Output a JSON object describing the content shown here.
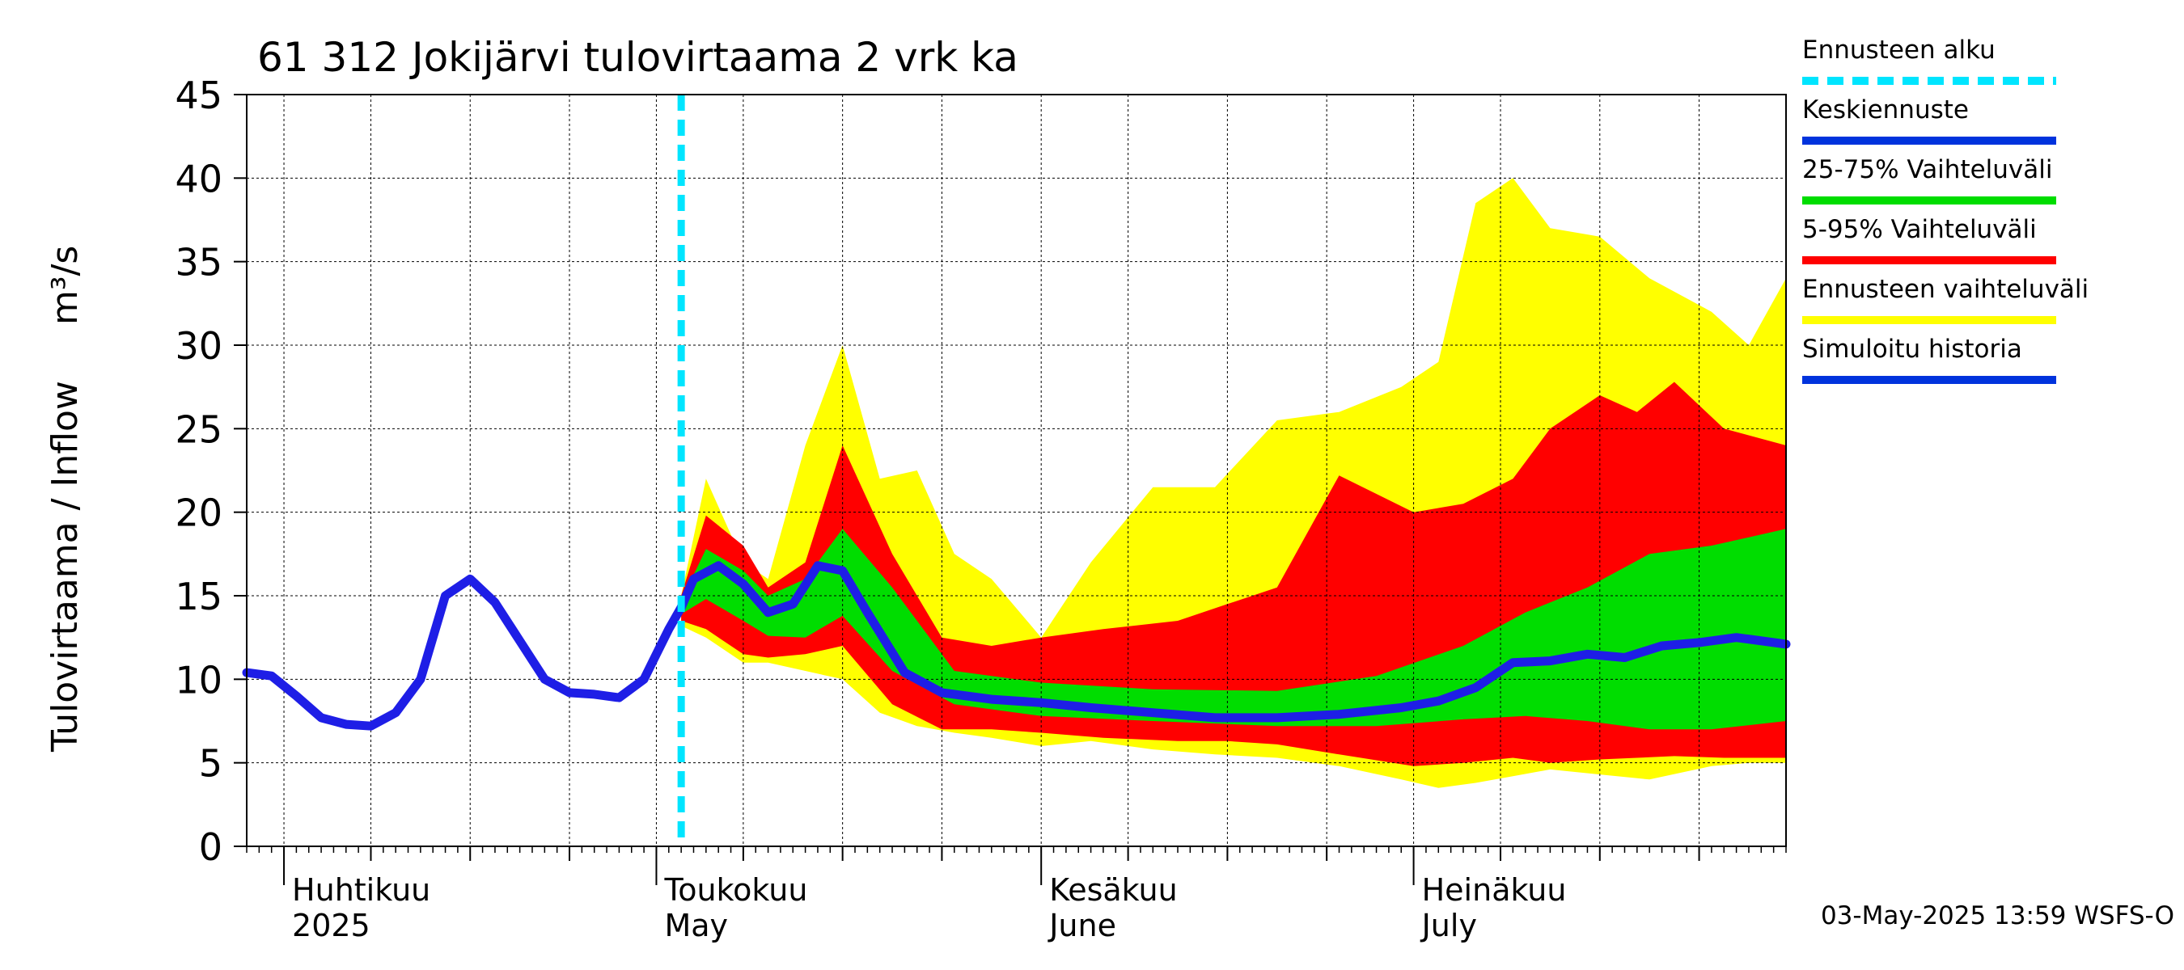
{
  "chart_data": {
    "type": "area",
    "title": "61 312 Jokijärvi tulovirtaama 2 vrk ka",
    "ylabel": "Tulovirtaama / Inflow",
    "yunit": "m³/s",
    "ylim": [
      0,
      45
    ],
    "yticks": [
      "0",
      "5",
      "10",
      "15",
      "20",
      "25",
      "30",
      "35",
      "40",
      "45"
    ],
    "xlim": [
      "2025-03-29",
      "2025-07-31"
    ],
    "month_labels": [
      {
        "fi": "Huhtikuu",
        "en": "2025",
        "date": "2025-04-01"
      },
      {
        "fi": "Toukokuu",
        "en": "May",
        "date": "2025-05-01"
      },
      {
        "fi": "Kesäkuu",
        "en": "June",
        "date": "2025-06-01"
      },
      {
        "fi": "Heinäkuu",
        "en": "July",
        "date": "2025-07-01"
      }
    ],
    "forecast_start": "2025-05-03",
    "grid": true,
    "legend_position": "right",
    "legend": [
      {
        "label": "Ennusteen alku",
        "color": "#00e5ff",
        "style": "dashed"
      },
      {
        "label": "Keskiennuste",
        "color": "#0033dd",
        "style": "solid"
      },
      {
        "label": "25-75% Vaihteluväli",
        "color": "#00dd00",
        "style": "solid"
      },
      {
        "label": "5-95% Vaihteluväli",
        "color": "#ff0000",
        "style": "solid"
      },
      {
        "label": "Ennusteen vaihteluväli",
        "color": "#ffff00",
        "style": "solid"
      },
      {
        "label": "Simuloitu historia",
        "color": "#0033dd",
        "style": "solid"
      }
    ],
    "footer": "03-May-2025 13:59 WSFS-O",
    "series": [
      {
        "name": "Simuloitu historia",
        "color": "#1e1ee6",
        "x": [
          "2025-03-29",
          "2025-03-31",
          "2025-04-02",
          "2025-04-04",
          "2025-04-06",
          "2025-04-08",
          "2025-04-10",
          "2025-04-12",
          "2025-04-14",
          "2025-04-16",
          "2025-04-18",
          "2025-04-20",
          "2025-04-22",
          "2025-04-24",
          "2025-04-26",
          "2025-04-28",
          "2025-04-30",
          "2025-05-01",
          "2025-05-02",
          "2025-05-03"
        ],
        "y": [
          10.4,
          10.2,
          9.0,
          7.7,
          7.3,
          7.2,
          8.0,
          10.0,
          15.0,
          16.0,
          14.6,
          12.3,
          10.0,
          9.2,
          9.1,
          8.9,
          10.0,
          11.5,
          13.0,
          14.3
        ]
      },
      {
        "name": "Keskiennuste",
        "color": "#1e1ee6",
        "x": [
          "2025-05-03",
          "2025-05-04",
          "2025-05-06",
          "2025-05-08",
          "2025-05-10",
          "2025-05-12",
          "2025-05-14",
          "2025-05-16",
          "2025-05-18",
          "2025-05-21",
          "2025-05-24",
          "2025-05-28",
          "2025-06-01",
          "2025-06-05",
          "2025-06-10",
          "2025-06-15",
          "2025-06-20",
          "2025-06-25",
          "2025-06-30",
          "2025-07-03",
          "2025-07-06",
          "2025-07-09",
          "2025-07-12",
          "2025-07-15",
          "2025-07-18",
          "2025-07-21",
          "2025-07-24",
          "2025-07-27",
          "2025-07-31"
        ],
        "y": [
          14.3,
          16.0,
          16.8,
          15.7,
          14.0,
          14.5,
          16.8,
          16.5,
          14.0,
          10.4,
          9.2,
          8.8,
          8.6,
          8.3,
          8.0,
          7.7,
          7.7,
          7.9,
          8.3,
          8.7,
          9.5,
          11.0,
          11.1,
          11.5,
          11.3,
          12.0,
          12.2,
          12.5,
          12.1
        ]
      },
      {
        "name": "25-75% Vaihteluväli",
        "color": "#00dd00",
        "x": [
          "2025-05-03",
          "2025-05-05",
          "2025-05-08",
          "2025-05-10",
          "2025-05-13",
          "2025-05-16",
          "2025-05-20",
          "2025-05-25",
          "2025-06-01",
          "2025-06-10",
          "2025-06-20",
          "2025-06-28",
          "2025-07-05",
          "2025-07-10",
          "2025-07-15",
          "2025-07-20",
          "2025-07-25",
          "2025-07-31"
        ],
        "low": [
          13.9,
          14.8,
          13.5,
          12.6,
          12.5,
          13.8,
          10.5,
          8.5,
          7.8,
          7.5,
          7.2,
          7.2,
          7.6,
          7.8,
          7.5,
          7.0,
          7.0,
          7.5
        ],
        "high": [
          14.7,
          17.8,
          16.5,
          15.0,
          16.0,
          19.0,
          15.5,
          10.5,
          9.8,
          9.4,
          9.3,
          10.2,
          12.0,
          14.0,
          15.5,
          17.5,
          18.0,
          19.0
        ]
      },
      {
        "name": "5-95% Vaihteluväli",
        "color": "#ff0000",
        "x": [
          "2025-05-03",
          "2025-05-05",
          "2025-05-08",
          "2025-05-10",
          "2025-05-13",
          "2025-05-16",
          "2025-05-20",
          "2025-05-24",
          "2025-05-28",
          "2025-06-01",
          "2025-06-06",
          "2025-06-12",
          "2025-06-16",
          "2025-06-20",
          "2025-06-25",
          "2025-07-01",
          "2025-07-05",
          "2025-07-09",
          "2025-07-12",
          "2025-07-16",
          "2025-07-19",
          "2025-07-22",
          "2025-07-26",
          "2025-07-31"
        ],
        "low": [
          13.5,
          13.0,
          11.5,
          11.3,
          11.5,
          12.0,
          8.5,
          7.0,
          7.0,
          6.8,
          6.5,
          6.3,
          6.3,
          6.1,
          5.5,
          4.8,
          5.0,
          5.3,
          5.0,
          5.2,
          5.3,
          5.4,
          5.3,
          5.3
        ],
        "high": [
          15.0,
          19.8,
          18.0,
          15.5,
          17.0,
          24.0,
          17.5,
          12.5,
          12.0,
          12.5,
          13.0,
          13.5,
          14.5,
          15.5,
          22.2,
          20.0,
          20.5,
          22.0,
          25.0,
          27.0,
          26.0,
          27.8,
          25.0,
          24.0
        ]
      },
      {
        "name": "Ennusteen vaihteluväli",
        "color": "#ffff00",
        "x": [
          "2025-05-03",
          "2025-05-05",
          "2025-05-08",
          "2025-05-10",
          "2025-05-13",
          "2025-05-16",
          "2025-05-19",
          "2025-05-22",
          "2025-05-25",
          "2025-05-28",
          "2025-06-01",
          "2025-06-05",
          "2025-06-10",
          "2025-06-15",
          "2025-06-20",
          "2025-06-25",
          "2025-06-30",
          "2025-07-03",
          "2025-07-06",
          "2025-07-09",
          "2025-07-12",
          "2025-07-16",
          "2025-07-20",
          "2025-07-25",
          "2025-07-28",
          "2025-07-31"
        ],
        "low": [
          13.2,
          12.5,
          11.0,
          11.0,
          10.5,
          10.0,
          8.0,
          7.2,
          6.8,
          6.5,
          6.0,
          6.3,
          5.8,
          5.5,
          5.3,
          4.8,
          4.0,
          3.5,
          3.8,
          4.2,
          4.6,
          4.3,
          4.0,
          4.8,
          5.0,
          5.0
        ],
        "high": [
          15.0,
          22.0,
          17.0,
          16.0,
          24.0,
          30.0,
          22.0,
          22.5,
          17.5,
          16.0,
          12.5,
          17.0,
          21.5,
          21.5,
          25.5,
          26.0,
          27.5,
          29.0,
          38.5,
          40.0,
          37.0,
          36.5,
          34.0,
          32.0,
          30.0,
          34.0
        ]
      }
    ]
  }
}
